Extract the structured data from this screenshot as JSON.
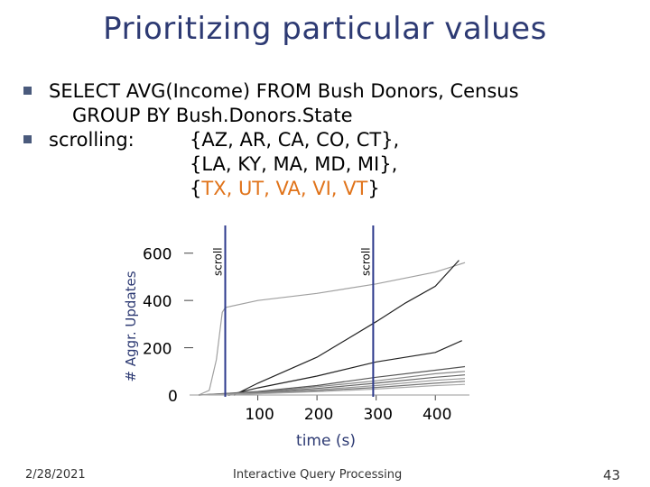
{
  "slide": {
    "title": "Prioritizing particular values",
    "bullet1": {
      "line1": "SELECT AVG(Income) FROM Bush Donors, Census",
      "line2": "GROUP BY Bush.Donors.State"
    },
    "bullet2": {
      "label": "scrolling:",
      "set1": "{AZ, AR, CA, CO, CT},",
      "set2": "{LA, KY, MA, MD, MI},",
      "set3_open": "{",
      "set3_items": "TX, UT, VA, VI, VT",
      "set3_close": "}"
    },
    "footer": {
      "date": "2/28/2021",
      "center": "Interactive Query Processing",
      "page": "43"
    }
  },
  "colors": {
    "title": "#2d3a73",
    "highlight": "#e0731a",
    "marker": "#2d3a8c",
    "bullet": "#4a5a7c"
  },
  "chart_data": {
    "type": "line",
    "xlabel": "time (s)",
    "ylabel": "# Aggr. Updates",
    "x_ticks": [
      "100",
      "200",
      "300",
      "400"
    ],
    "y_ticks": [
      "0",
      "200",
      "400",
      "600"
    ],
    "xlim": [
      0,
      450
    ],
    "ylim": [
      0,
      660
    ],
    "markers": [
      {
        "label": "scroll",
        "x": 45
      },
      {
        "label": "scroll",
        "x": 295
      }
    ],
    "series": [
      {
        "color": "#a0a0a0",
        "points": [
          [
            0,
            0
          ],
          [
            18,
            20
          ],
          [
            30,
            150
          ],
          [
            40,
            350
          ],
          [
            45,
            370
          ],
          [
            100,
            400
          ],
          [
            200,
            430
          ],
          [
            300,
            470
          ],
          [
            400,
            520
          ],
          [
            450,
            560
          ]
        ]
      },
      {
        "color": "#222222",
        "points": [
          [
            60,
            0
          ],
          [
            100,
            50
          ],
          [
            200,
            160
          ],
          [
            300,
            310
          ],
          [
            350,
            390
          ],
          [
            400,
            460
          ],
          [
            440,
            570
          ]
        ]
      },
      {
        "color": "#222222",
        "points": [
          [
            50,
            0
          ],
          [
            100,
            30
          ],
          [
            200,
            80
          ],
          [
            300,
            140
          ],
          [
            400,
            180
          ],
          [
            445,
            230
          ]
        ]
      },
      {
        "color": "#555555",
        "points": [
          [
            0,
            0
          ],
          [
            100,
            15
          ],
          [
            200,
            40
          ],
          [
            300,
            75
          ],
          [
            400,
            105
          ],
          [
            450,
            120
          ]
        ]
      },
      {
        "color": "#888888",
        "points": [
          [
            0,
            0
          ],
          [
            100,
            12
          ],
          [
            200,
            35
          ],
          [
            300,
            60
          ],
          [
            400,
            90
          ],
          [
            450,
            100
          ]
        ]
      },
      {
        "color": "#666666",
        "points": [
          [
            0,
            0
          ],
          [
            100,
            10
          ],
          [
            200,
            28
          ],
          [
            300,
            50
          ],
          [
            400,
            75
          ],
          [
            450,
            85
          ]
        ]
      },
      {
        "color": "#999999",
        "points": [
          [
            0,
            0
          ],
          [
            100,
            8
          ],
          [
            200,
            22
          ],
          [
            300,
            40
          ],
          [
            400,
            62
          ],
          [
            450,
            70
          ]
        ]
      },
      {
        "color": "#777777",
        "points": [
          [
            0,
            0
          ],
          [
            100,
            6
          ],
          [
            200,
            18
          ],
          [
            300,
            32
          ],
          [
            400,
            50
          ],
          [
            450,
            58
          ]
        ]
      },
      {
        "color": "#aaaaaa",
        "points": [
          [
            0,
            0
          ],
          [
            100,
            5
          ],
          [
            200,
            14
          ],
          [
            300,
            25
          ],
          [
            400,
            40
          ],
          [
            450,
            45
          ]
        ]
      }
    ]
  }
}
